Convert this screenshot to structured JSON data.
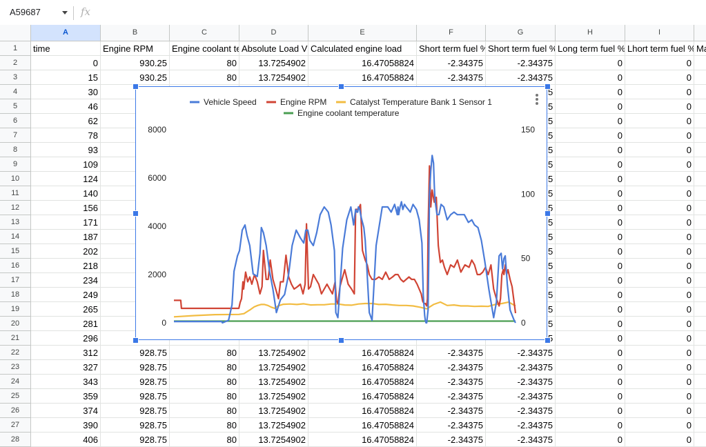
{
  "toolbar": {
    "name_box": "A59687",
    "fx_symbol": "fx",
    "formula_value": ""
  },
  "columns": [
    {
      "letter": "A",
      "header": "time",
      "selected": true
    },
    {
      "letter": "B",
      "header": "Engine RPM"
    },
    {
      "letter": "C",
      "header": "Engine coolant te"
    },
    {
      "letter": "D",
      "header": "Absolute Load V"
    },
    {
      "letter": "E",
      "header": "Calculated engine load"
    },
    {
      "letter": "F",
      "header": "Short term fuel %"
    },
    {
      "letter": "G",
      "header": "Short term fuel %"
    },
    {
      "letter": "H",
      "header": "Long term fuel %"
    },
    {
      "letter": "I",
      "header": "Lhort term fuel %"
    },
    {
      "letter": "",
      "header": "Ma"
    }
  ],
  "row_numbers": [
    "1",
    "2",
    "3",
    "4",
    "5",
    "6",
    "7",
    "8",
    "9",
    "10",
    "11",
    "12",
    "13",
    "14",
    "15",
    "16",
    "17",
    "18",
    "19",
    "20",
    "21",
    "22",
    "23",
    "24",
    "25",
    "26",
    "27",
    "28"
  ],
  "time_values": [
    "0",
    "15",
    "30",
    "46",
    "62",
    "78",
    "93",
    "109",
    "124",
    "140",
    "156",
    "171",
    "187",
    "202",
    "218",
    "234",
    "249",
    "265",
    "281",
    "296",
    "312",
    "327",
    "343",
    "359",
    "374",
    "390",
    "406"
  ],
  "rows_full": {
    "2": [
      "930.25",
      "80",
      "13.7254902",
      "16.47058824",
      "-2.34375",
      "-2.34375",
      "0",
      "0"
    ],
    "3": [
      "930.25",
      "80",
      "13.7254902",
      "16.47058824",
      "-2.34375",
      "-2.34375",
      "0",
      "0"
    ],
    "22": [
      "928.75",
      "80",
      "13.7254902",
      "16.47058824",
      "-2.34375",
      "-2.34375",
      "0",
      "0"
    ],
    "23": [
      "928.75",
      "80",
      "13.7254902",
      "16.47058824",
      "-2.34375",
      "-2.34375",
      "0",
      "0"
    ],
    "24": [
      "928.75",
      "80",
      "13.7254902",
      "16.47058824",
      "-2.34375",
      "-2.34375",
      "0",
      "0"
    ],
    "25": [
      "928.75",
      "80",
      "13.7254902",
      "16.47058824",
      "-2.34375",
      "-2.34375",
      "0",
      "0"
    ],
    "26": [
      "928.75",
      "80",
      "13.7254902",
      "16.47058824",
      "-2.34375",
      "-2.34375",
      "0",
      "0"
    ],
    "27": [
      "928.75",
      "80",
      "13.7254902",
      "16.47058824",
      "-2.34375",
      "-2.34375",
      "0",
      "0"
    ],
    "28": [
      "928.75",
      "80",
      "13.7254902",
      "16.47058824",
      "-2.34375",
      "-2.34375",
      "0",
      "0"
    ]
  },
  "rows_partial": {
    "visible_g_fragment": "5",
    "h_value": "0",
    "i_value": "0"
  },
  "chart_data": {
    "type": "line",
    "title": "",
    "legend_position": "top",
    "series": [
      {
        "name": "Vehicle Speed",
        "color": "#4a7bd8",
        "axis": "right",
        "x": [
          0,
          140,
          142,
          160,
          170,
          176,
          186,
          192,
          200,
          208,
          214,
          222,
          232,
          244,
          252,
          256,
          262,
          270,
          280,
          290,
          300,
          312,
          324,
          336,
          346,
          358,
          370,
          380,
          386,
          392,
          398,
          408,
          418,
          428,
          440,
          452,
          460,
          470,
          474,
          480,
          494,
          506,
          518,
          526,
          532,
          536,
          538,
          540,
          544,
          548,
          556,
          560,
          564,
          572,
          580,
          592,
          610,
          626,
          636,
          646,
          650,
          654,
          656,
          658,
          662,
          666,
          670,
          675,
          680,
          686,
          692,
          700,
          710,
          718,
          726,
          730,
          734,
          736,
          738,
          740,
          744,
          746,
          748,
          752,
          756,
          760,
          762,
          764,
          770,
          776,
          782,
          790,
          800,
          810,
          820,
          830,
          840,
          850,
          862,
          872,
          880,
          890,
          900,
          910,
          922,
          936,
          944,
          952,
          958,
          962,
          966,
          970,
          976,
          984,
          990,
          996,
          1000
        ],
        "y": [
          1,
          1,
          0,
          2,
          14,
          40,
          52,
          56,
          72,
          76,
          68,
          60,
          38,
          36,
          54,
          74,
          70,
          60,
          40,
          26,
          8,
          18,
          22,
          38,
          60,
          72,
          66,
          62,
          72,
          72,
          64,
          60,
          70,
          84,
          90,
          86,
          76,
          56,
          8,
          4,
          58,
          80,
          90,
          76,
          88,
          86,
          86,
          90,
          88,
          82,
          74,
          64,
          46,
          8,
          2,
          60,
          90,
          90,
          86,
          92,
          88,
          84,
          90,
          84,
          90,
          94,
          88,
          92,
          90,
          88,
          86,
          92,
          88,
          80,
          62,
          22,
          6,
          2,
          0,
          0,
          10,
          50,
          100,
          118,
          130,
          124,
          108,
          96,
          84,
          84,
          92,
          90,
          80,
          84,
          86,
          84,
          84,
          84,
          78,
          80,
          76,
          74,
          64,
          48,
          26,
          4,
          16,
          52,
          54,
          42,
          50,
          52,
          30,
          10,
          6,
          2,
          0
        ]
      },
      {
        "name": "Engine RPM",
        "color": "#d04434",
        "axis": "left",
        "x": [
          0,
          20,
          22,
          60,
          140,
          190,
          194,
          198,
          202,
          204,
          210,
          216,
          222,
          228,
          236,
          244,
          252,
          258,
          262,
          266,
          270,
          276,
          282,
          290,
          296,
          302,
          306,
          312,
          320,
          328,
          336,
          344,
          352,
          362,
          370,
          378,
          384,
          388,
          394,
          400,
          408,
          416,
          424,
          432,
          440,
          448,
          456,
          464,
          472,
          476,
          480,
          486,
          492,
          500,
          510,
          520,
          528,
          532,
          536,
          540,
          546,
          552,
          560,
          566,
          572,
          580,
          590,
          600,
          610,
          620,
          630,
          640,
          648,
          656,
          664,
          672,
          680,
          688,
          696,
          704,
          712,
          718,
          724,
          728,
          732,
          736,
          740,
          742,
          744,
          748,
          752,
          756,
          762,
          768,
          774,
          780,
          786,
          792,
          800,
          810,
          820,
          830,
          840,
          852,
          864,
          872,
          880,
          888,
          896,
          904,
          912,
          920,
          928,
          936,
          944,
          952,
          956,
          960,
          964,
          966,
          970,
          974,
          978,
          984,
          990,
          1000
        ],
        "y": [
          930,
          930,
          600,
          600,
          600,
          600,
          850,
          1000,
          1700,
          1400,
          2100,
          1700,
          1900,
          1600,
          2000,
          1700,
          1200,
          1500,
          3000,
          2400,
          1800,
          1800,
          2600,
          1800,
          1500,
          1200,
          1000,
          1700,
          1700,
          2800,
          1900,
          1600,
          1400,
          1500,
          1600,
          1200,
          1600,
          4100,
          1400,
          1500,
          2000,
          1800,
          1600,
          1200,
          1400,
          1600,
          1400,
          1200,
          1700,
          900,
          800,
          1500,
          1800,
          2200,
          1600,
          1400,
          1200,
          4700,
          4700,
          4700,
          4900,
          3000,
          2600,
          2400,
          2000,
          1800,
          1800,
          1900,
          1800,
          2100,
          1800,
          1900,
          2000,
          2000,
          1800,
          1700,
          1800,
          1900,
          1800,
          1800,
          1600,
          1400,
          1200,
          900,
          800,
          800,
          700,
          1000,
          3800,
          6500,
          4800,
          5500,
          5000,
          5200,
          3200,
          2500,
          2600,
          2300,
          2000,
          2400,
          2300,
          2600,
          2100,
          2400,
          2300,
          2600,
          2400,
          2000,
          2000,
          2100,
          2300,
          2000,
          2400,
          1400,
          1000,
          700,
          1000,
          2000,
          2200,
          2000,
          2400,
          2000,
          2200,
          1800,
          1500,
          400
        ]
      },
      {
        "name": "Catalyst Temperature Bank 1 Sensor 1",
        "color": "#f2bc42",
        "axis": "left",
        "x": [
          0,
          60,
          120,
          190,
          205,
          215,
          225,
          235,
          245,
          255,
          265,
          275,
          285,
          295,
          305,
          320,
          340,
          360,
          380,
          400,
          420,
          440,
          460,
          480,
          500,
          520,
          540,
          560,
          580,
          600,
          620,
          640,
          660,
          680,
          700,
          720,
          740,
          760,
          780,
          800,
          820,
          840,
          860,
          880,
          900,
          920,
          940,
          960,
          980,
          1000
        ],
        "y": [
          250,
          300,
          340,
          350,
          380,
          470,
          560,
          660,
          720,
          760,
          760,
          720,
          650,
          600,
          700,
          770,
          780,
          760,
          790,
          740,
          750,
          750,
          780,
          780,
          740,
          730,
          780,
          800,
          800,
          760,
          770,
          740,
          720,
          720,
          700,
          650,
          580,
          760,
          860,
          720,
          740,
          700,
          700,
          680,
          690,
          680,
          760,
          800,
          860,
          700
        ]
      },
      {
        "name": "Engine coolant temperature",
        "color": "#4a9e52",
        "axis": "right",
        "x": [
          0,
          1000
        ],
        "y": [
          0,
          0
        ]
      }
    ],
    "left_axis": {
      "ylim": [
        0,
        8000
      ],
      "ticks": [
        "0",
        "2000",
        "4000",
        "6000",
        "8000"
      ]
    },
    "right_axis": {
      "ylim": [
        0,
        150
      ],
      "ticks": [
        "0",
        "50",
        "100",
        "150"
      ]
    },
    "x_range": [
      0,
      1000
    ],
    "grid": false
  }
}
